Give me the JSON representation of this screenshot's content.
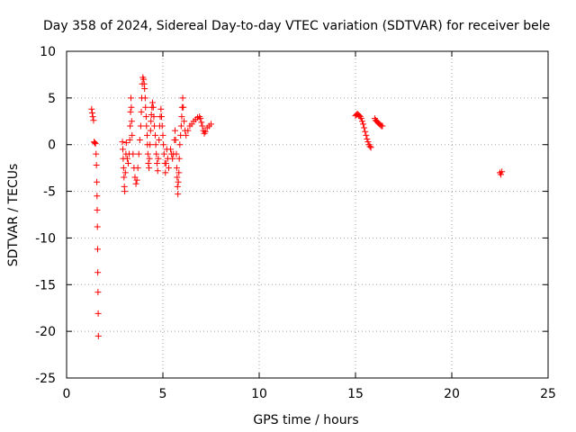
{
  "chart_data": {
    "type": "scatter",
    "title": "Day 358 of 2024, Sidereal Day-to-day VTEC variation (SDTVAR) for receiver bele",
    "xlabel": "GPS time / hours",
    "ylabel": "SDTVAR / TECUs",
    "xlim": [
      0,
      25
    ],
    "ylim": [
      -25,
      10
    ],
    "grid": true,
    "marker": "+",
    "color": "#ff0000",
    "x_ticks": [
      {
        "value": 0,
        "label": "0"
      },
      {
        "value": 5,
        "label": "5"
      },
      {
        "value": 10,
        "label": "10"
      },
      {
        "value": 15,
        "label": "15"
      },
      {
        "value": 20,
        "label": "20"
      },
      {
        "value": 25,
        "label": "25"
      }
    ],
    "y_ticks": [
      {
        "value": 10,
        "label": "10"
      },
      {
        "value": 5,
        "label": "5"
      },
      {
        "value": 0,
        "label": "0"
      },
      {
        "value": -5,
        "label": "-5"
      },
      {
        "value": -10,
        "label": "-10"
      },
      {
        "value": -15,
        "label": "-15"
      },
      {
        "value": -20,
        "label": "-20"
      },
      {
        "value": -25,
        "label": "-25"
      }
    ],
    "series": [
      {
        "name": "SDTVAR",
        "points": [
          [
            1.3,
            3.8
          ],
          [
            1.33,
            3.4
          ],
          [
            1.36,
            3.0
          ],
          [
            1.4,
            2.6
          ],
          [
            1.43,
            0.3
          ],
          [
            1.46,
            0.2
          ],
          [
            1.5,
            0.1
          ],
          [
            1.53,
            -1.0
          ],
          [
            1.55,
            -2.2
          ],
          [
            1.57,
            -4.0
          ],
          [
            1.58,
            -5.5
          ],
          [
            1.59,
            -7.0
          ],
          [
            1.6,
            -8.8
          ],
          [
            1.61,
            -11.2
          ],
          [
            1.62,
            -13.7
          ],
          [
            1.63,
            -15.8
          ],
          [
            1.64,
            -18.1
          ],
          [
            1.65,
            -20.5
          ],
          [
            2.9,
            0.3
          ],
          [
            2.92,
            -0.5
          ],
          [
            2.94,
            -1.5
          ],
          [
            2.96,
            -2.5
          ],
          [
            2.98,
            -3.5
          ],
          [
            3.0,
            -4.5
          ],
          [
            3.02,
            -5.0
          ],
          [
            3.05,
            -3.0
          ],
          [
            3.08,
            -1.0
          ],
          [
            3.1,
            0.2
          ],
          [
            3.15,
            -1.5
          ],
          [
            3.2,
            -2.0
          ],
          [
            3.25,
            -1.0
          ],
          [
            3.28,
            0.5
          ],
          [
            3.3,
            2.0
          ],
          [
            3.32,
            3.5
          ],
          [
            3.34,
            5.0
          ],
          [
            3.36,
            4.0
          ],
          [
            3.38,
            2.5
          ],
          [
            3.4,
            1.0
          ],
          [
            3.45,
            -1.0
          ],
          [
            3.5,
            -2.5
          ],
          [
            3.55,
            -3.5
          ],
          [
            3.6,
            -4.2
          ],
          [
            3.65,
            -3.8
          ],
          [
            3.7,
            -2.5
          ],
          [
            3.75,
            -1.0
          ],
          [
            3.8,
            0.5
          ],
          [
            3.85,
            2.0
          ],
          [
            3.88,
            3.5
          ],
          [
            3.9,
            5.0
          ],
          [
            3.93,
            6.5
          ],
          [
            3.96,
            7.2
          ],
          [
            4.0,
            7.0
          ],
          [
            4.03,
            6.5
          ],
          [
            4.05,
            6.0
          ],
          [
            4.08,
            5.0
          ],
          [
            4.1,
            4.0
          ],
          [
            4.13,
            3.0
          ],
          [
            4.15,
            2.0
          ],
          [
            4.18,
            1.0
          ],
          [
            4.2,
            0.0
          ],
          [
            4.22,
            -1.0
          ],
          [
            4.25,
            -2.0
          ],
          [
            4.28,
            -2.5
          ],
          [
            4.3,
            -1.5
          ],
          [
            4.33,
            0.0
          ],
          [
            4.36,
            1.5
          ],
          [
            4.38,
            2.5
          ],
          [
            4.4,
            3.2
          ],
          [
            4.43,
            4.0
          ],
          [
            4.46,
            4.5
          ],
          [
            4.5,
            4.0
          ],
          [
            4.53,
            3.0
          ],
          [
            4.56,
            2.0
          ],
          [
            4.6,
            1.0
          ],
          [
            4.63,
            0.0
          ],
          [
            4.66,
            -1.0
          ],
          [
            4.7,
            -2.0
          ],
          [
            4.73,
            -2.8
          ],
          [
            4.76,
            -1.5
          ],
          [
            4.8,
            0.5
          ],
          [
            4.83,
            2.0
          ],
          [
            4.86,
            3.0
          ],
          [
            4.9,
            3.8
          ],
          [
            4.93,
            3.0
          ],
          [
            4.96,
            2.0
          ],
          [
            5.0,
            1.0
          ],
          [
            5.03,
            0.0
          ],
          [
            5.06,
            -1.0
          ],
          [
            5.1,
            -2.0
          ],
          [
            5.13,
            -3.0
          ],
          [
            5.16,
            -2.0
          ],
          [
            5.2,
            -0.5
          ],
          [
            5.25,
            -1.5
          ],
          [
            5.3,
            -2.5
          ],
          [
            5.4,
            -0.5
          ],
          [
            5.45,
            -1.0
          ],
          [
            5.5,
            -1.5
          ],
          [
            5.55,
            -1.0
          ],
          [
            5.6,
            0.5
          ],
          [
            5.63,
            1.5
          ],
          [
            5.66,
            0.5
          ],
          [
            5.7,
            -1.0
          ],
          [
            5.72,
            -2.5
          ],
          [
            5.74,
            -3.5
          ],
          [
            5.76,
            -4.5
          ],
          [
            5.78,
            -5.3
          ],
          [
            5.8,
            -4.0
          ],
          [
            5.83,
            -3.0
          ],
          [
            5.85,
            -1.5
          ],
          [
            5.88,
            0.0
          ],
          [
            5.92,
            1.0
          ],
          [
            5.95,
            2.0
          ],
          [
            5.98,
            3.0
          ],
          [
            6.0,
            4.0
          ],
          [
            6.03,
            5.0
          ],
          [
            6.06,
            4.0
          ],
          [
            6.1,
            2.5
          ],
          [
            6.15,
            1.5
          ],
          [
            6.2,
            1.0
          ],
          [
            6.3,
            1.5
          ],
          [
            6.4,
            2.0
          ],
          [
            6.5,
            2.2
          ],
          [
            6.6,
            2.5
          ],
          [
            6.7,
            2.7
          ],
          [
            6.8,
            2.9
          ],
          [
            6.9,
            3.0
          ],
          [
            6.95,
            2.8
          ],
          [
            7.0,
            2.4
          ],
          [
            7.05,
            2.0
          ],
          [
            7.1,
            1.5
          ],
          [
            7.15,
            1.2
          ],
          [
            7.2,
            1.4
          ],
          [
            7.3,
            1.8
          ],
          [
            7.4,
            2.0
          ],
          [
            7.5,
            2.2
          ],
          [
            15.0,
            3.1
          ],
          [
            15.05,
            3.2
          ],
          [
            15.1,
            3.3
          ],
          [
            15.15,
            3.2
          ],
          [
            15.2,
            3.1
          ],
          [
            15.25,
            3.0
          ],
          [
            15.3,
            2.8
          ],
          [
            15.35,
            2.5
          ],
          [
            15.4,
            2.2
          ],
          [
            15.45,
            1.8
          ],
          [
            15.5,
            1.4
          ],
          [
            15.55,
            1.0
          ],
          [
            15.6,
            0.6
          ],
          [
            15.65,
            0.3
          ],
          [
            15.7,
            0.0
          ],
          [
            15.75,
            -0.2
          ],
          [
            15.8,
            -0.3
          ],
          [
            16.0,
            2.8
          ],
          [
            16.05,
            2.6
          ],
          [
            16.1,
            2.5
          ],
          [
            16.15,
            2.4
          ],
          [
            16.2,
            2.3
          ],
          [
            16.25,
            2.2
          ],
          [
            16.3,
            2.1
          ],
          [
            16.35,
            2.0
          ],
          [
            16.4,
            2.0
          ],
          [
            22.5,
            -3.0
          ],
          [
            22.55,
            -3.2
          ],
          [
            22.6,
            -2.9
          ]
        ]
      }
    ]
  }
}
